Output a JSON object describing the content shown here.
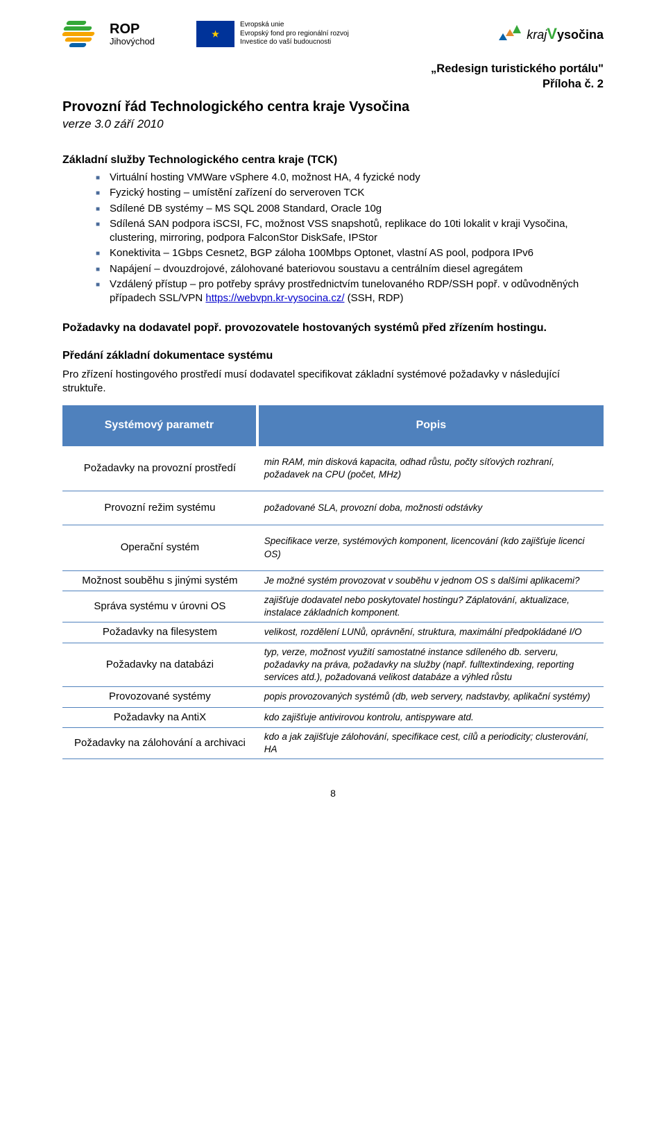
{
  "header": {
    "rop_name": "ROP",
    "rop_region": "Jihovýchod",
    "rop_colors": [
      "#35a838",
      "#35a838",
      "#f6a500",
      "#f6a500",
      "#0a62a9",
      "#0a62a9"
    ],
    "eu_line1": "Evropská unie",
    "eu_line2": "Evropský fond pro regionální rozvoj",
    "eu_line3": "Investice do vaší budoucnosti",
    "kraj_prefix": "kraj",
    "kraj_name": "Vysočina",
    "right_line1": "„Redesign turistického portálu\"",
    "right_line2": "Příloha č. 2"
  },
  "title": "Provozní řád Technologického centra kraje Vysočina",
  "version": "verze 3.0 září 2010",
  "section1_heading": "Základní služby Technologického centra kraje (TCK)",
  "bullets": [
    "Virtuální hosting VMWare vSphere 4.0, možnost HA, 4 fyzické nody",
    "Fyzický hosting – umístění zařízení do serveroven TCK",
    "Sdílené DB systémy – MS SQL 2008 Standard, Oracle 10g",
    "Sdílená SAN podpora iSCSI, FC, možnost VSS snapshotů, replikace do 10ti lokalit v kraji Vysočina, clustering, mirroring, podpora FalconStor DiskSafe, IPStor",
    "Konektivita – 1Gbps Cesnet2, BGP záloha 100Mbps Optonet, vlastní AS pool, podpora IPv6",
    "Napájení – dvouzdrojové, zálohované bateriovou soustavu a centrálním diesel agregátem",
    "Vzdálený přístup – pro potřeby správy prostřednictvím tunelovaného RDP/SSH popř. v odůvodněných případech SSL/VPN "
  ],
  "link_text": "https://webvpn.kr-vysocina.cz/",
  "link_suffix": "  (SSH, RDP)",
  "section2_heading": "Požadavky na dodavatel popř. provozovatele hostovaných systémů před zřízením hostingu.",
  "section3_heading": "Předání základní dokumentace systému",
  "table_intro": "Pro zřízení hostingového prostředí musí dodavatel specifikovat základní systémové požadavky v následující struktuře.",
  "table": {
    "header_bg": "#4f81bd",
    "header_fg": "#ffffff",
    "border_color": "#4f81bd",
    "col1_header": "Systémový parametr",
    "col2_header": "Popis",
    "rows": [
      {
        "label": "Požadavky na provozní prostředí",
        "desc": "min RAM, min disková kapacita, odhad růstu, počty síťových rozhraní, požadavek na CPU (počet, MHz)",
        "tight": false
      },
      {
        "label": "Provozní režim systému",
        "desc": "požadované SLA, provozní doba, možnosti odstávky",
        "tight": false
      },
      {
        "label": "Operační systém",
        "desc": "Specifikace verze, systémových komponent, licencování (kdo zajišťuje licenci OS)",
        "tight": false
      },
      {
        "label": "Možnost souběhu s jinými systém",
        "desc": "Je možné systém provozovat v souběhu v jednom OS s dalšími aplikacemi?",
        "tight": true
      },
      {
        "label": "Správa systému v úrovni OS",
        "desc": "zajišťuje dodavatel nebo poskytovatel hostingu? Záplatování, aktualizace, instalace základních komponent.",
        "tight": true
      },
      {
        "label": "Požadavky na filesystem",
        "desc": "velikost, rozdělení LUNů, oprávnění, struktura, maximální předpokládané I/O",
        "tight": true
      },
      {
        "label": "Požadavky na databázi",
        "desc": "typ, verze, možnost využití samostatné instance sdíleného db. serveru, požadavky na práva, požadavky na služby (např. fulltextindexing, reporting services atd.), požadovaná velikost databáze a výhled růstu",
        "tight": true
      },
      {
        "label": "Provozované systémy",
        "desc": "popis provozovaných systémů (db, web servery, nadstavby, aplikační systémy)",
        "tight": true
      },
      {
        "label": "Požadavky na AntiX",
        "desc": "kdo zajišťuje antivirovou kontrolu, antispyware atd.",
        "tight": true
      },
      {
        "label": "Požadavky na zálohování a archivaci",
        "desc": "kdo a jak zajišťuje zálohování, specifikace cest, cílů a periodicity; clusterování, HA",
        "tight": true
      }
    ]
  },
  "page_number": "8"
}
